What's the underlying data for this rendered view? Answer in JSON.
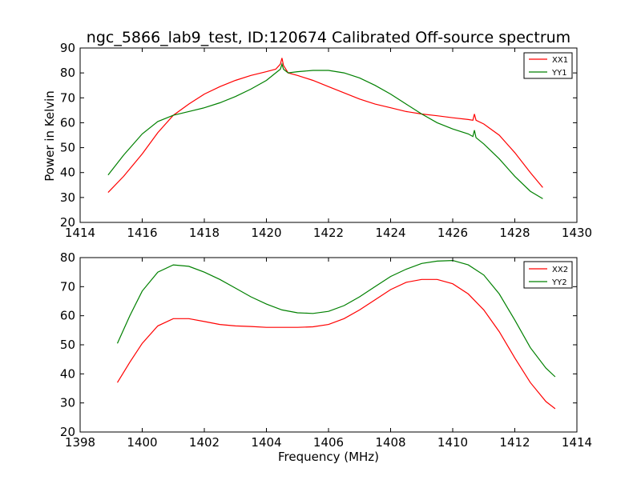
{
  "chart_data": [
    {
      "type": "line",
      "title": "ngc_5866_lab9_test, ID:120674 Calibrated Off-source spectrum",
      "xlabel": "",
      "ylabel": "Power in Kelvin",
      "xlim": [
        1414,
        1430
      ],
      "ylim": [
        20,
        90
      ],
      "xticks": [
        1414,
        1416,
        1418,
        1420,
        1422,
        1424,
        1426,
        1428,
        1430
      ],
      "yticks": [
        20,
        30,
        40,
        50,
        60,
        70,
        80,
        90
      ],
      "grid": false,
      "legend": "top-right",
      "series": [
        {
          "name": "XX1",
          "color": "#ff0000",
          "x": [
            1414.9,
            1415.4,
            1416.0,
            1416.5,
            1417.0,
            1417.5,
            1418.0,
            1418.5,
            1419.0,
            1419.5,
            1420.0,
            1420.3,
            1420.45,
            1420.5,
            1420.55,
            1420.7,
            1421.0,
            1421.5,
            1422.0,
            1422.5,
            1423.0,
            1423.5,
            1424.0,
            1424.5,
            1425.0,
            1425.5,
            1426.0,
            1426.5,
            1426.65,
            1426.7,
            1426.75,
            1427.0,
            1427.5,
            1428.0,
            1428.5,
            1428.9
          ],
          "y": [
            32.0,
            38.5,
            47.5,
            56.0,
            63.0,
            67.5,
            71.5,
            74.5,
            77.0,
            79.0,
            80.5,
            81.5,
            83.5,
            86.0,
            83.0,
            80.0,
            79.0,
            77.0,
            74.5,
            72.0,
            69.5,
            67.5,
            66.0,
            64.5,
            63.5,
            62.8,
            62.0,
            61.3,
            61.0,
            63.5,
            61.0,
            59.5,
            55.0,
            48.0,
            40.0,
            34.0
          ]
        },
        {
          "name": "YY1",
          "color": "#008000",
          "x": [
            1414.9,
            1415.4,
            1416.0,
            1416.5,
            1417.0,
            1417.5,
            1418.0,
            1418.5,
            1419.0,
            1419.5,
            1420.0,
            1420.3,
            1420.45,
            1420.5,
            1420.55,
            1420.7,
            1421.0,
            1421.5,
            1422.0,
            1422.5,
            1423.0,
            1423.5,
            1424.0,
            1424.5,
            1425.0,
            1425.5,
            1426.0,
            1426.5,
            1426.65,
            1426.7,
            1426.75,
            1427.0,
            1427.5,
            1428.0,
            1428.5,
            1428.9
          ],
          "y": [
            39.0,
            47.0,
            55.5,
            60.5,
            63.0,
            64.5,
            66.0,
            68.0,
            70.5,
            73.5,
            77.0,
            80.0,
            81.5,
            83.5,
            81.5,
            80.0,
            80.5,
            81.0,
            81.0,
            80.0,
            78.0,
            75.0,
            71.5,
            67.5,
            63.5,
            60.0,
            57.5,
            55.5,
            54.5,
            57.0,
            54.0,
            51.5,
            45.5,
            38.5,
            32.5,
            29.5
          ]
        }
      ]
    },
    {
      "type": "line",
      "title": "",
      "xlabel": "Frequency (MHz)",
      "ylabel": "",
      "xlim": [
        1398,
        1414
      ],
      "ylim": [
        20,
        80
      ],
      "xticks": [
        1398,
        1400,
        1402,
        1404,
        1406,
        1408,
        1410,
        1412,
        1414
      ],
      "yticks": [
        20,
        30,
        40,
        50,
        60,
        70,
        80
      ],
      "grid": false,
      "legend": "top-right",
      "series": [
        {
          "name": "XX2",
          "color": "#ff0000",
          "x": [
            1399.2,
            1399.6,
            1400.0,
            1400.5,
            1401.0,
            1401.5,
            1402.0,
            1402.5,
            1403.0,
            1403.5,
            1404.0,
            1404.5,
            1405.0,
            1405.5,
            1406.0,
            1406.5,
            1407.0,
            1407.5,
            1408.0,
            1408.5,
            1409.0,
            1409.5,
            1410.0,
            1410.5,
            1411.0,
            1411.5,
            1412.0,
            1412.5,
            1413.0,
            1413.3
          ],
          "y": [
            37.0,
            44.0,
            50.5,
            56.5,
            59.0,
            59.0,
            58.0,
            57.0,
            56.5,
            56.3,
            56.0,
            56.0,
            56.0,
            56.2,
            57.0,
            59.0,
            62.0,
            65.5,
            69.0,
            71.5,
            72.5,
            72.5,
            71.0,
            67.5,
            62.0,
            54.5,
            45.5,
            37.0,
            30.5,
            28.0
          ]
        },
        {
          "name": "YY2",
          "color": "#008000",
          "x": [
            1399.2,
            1399.6,
            1400.0,
            1400.5,
            1401.0,
            1401.5,
            1402.0,
            1402.5,
            1403.0,
            1403.5,
            1404.0,
            1404.5,
            1405.0,
            1405.5,
            1406.0,
            1406.5,
            1407.0,
            1407.5,
            1408.0,
            1408.5,
            1409.0,
            1409.5,
            1410.0,
            1410.5,
            1411.0,
            1411.5,
            1412.0,
            1412.5,
            1413.0,
            1413.3
          ],
          "y": [
            50.5,
            60.0,
            68.5,
            75.0,
            77.5,
            77.0,
            75.0,
            72.5,
            69.5,
            66.5,
            64.0,
            62.0,
            61.0,
            60.8,
            61.5,
            63.5,
            66.5,
            70.0,
            73.5,
            76.0,
            78.0,
            78.8,
            79.0,
            77.5,
            74.0,
            67.5,
            58.5,
            49.0,
            42.0,
            39.0
          ]
        }
      ]
    }
  ]
}
